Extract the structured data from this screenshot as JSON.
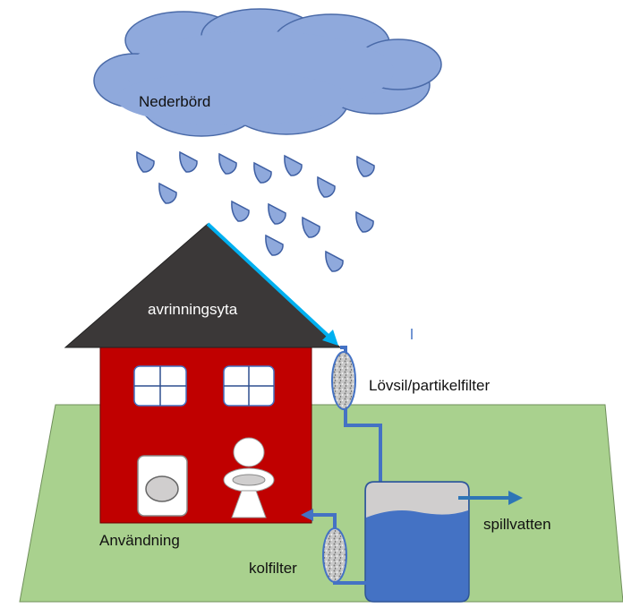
{
  "labels": {
    "precipitation": "Nederbörd",
    "runoff_surface": "avrinningsyta",
    "leaf_filter": "Lövsil/partikelfilter",
    "usage": "Användning",
    "carbon_filter": "kolfilter",
    "overflow": "spillvatten"
  },
  "colors": {
    "cloud": "#8fa9dc",
    "rain": "#8fa9dc",
    "roof": "#3b3838",
    "house": "#c00000",
    "lawn": "#a9d18e",
    "pipe": "#4472c4",
    "runoff_arrow": "#00b0f0",
    "tank_water": "#4472c4",
    "tank_top": "#d0cece"
  },
  "icons": [
    "window-icon",
    "washing-machine-icon",
    "toilet-icon",
    "filter-icon"
  ]
}
